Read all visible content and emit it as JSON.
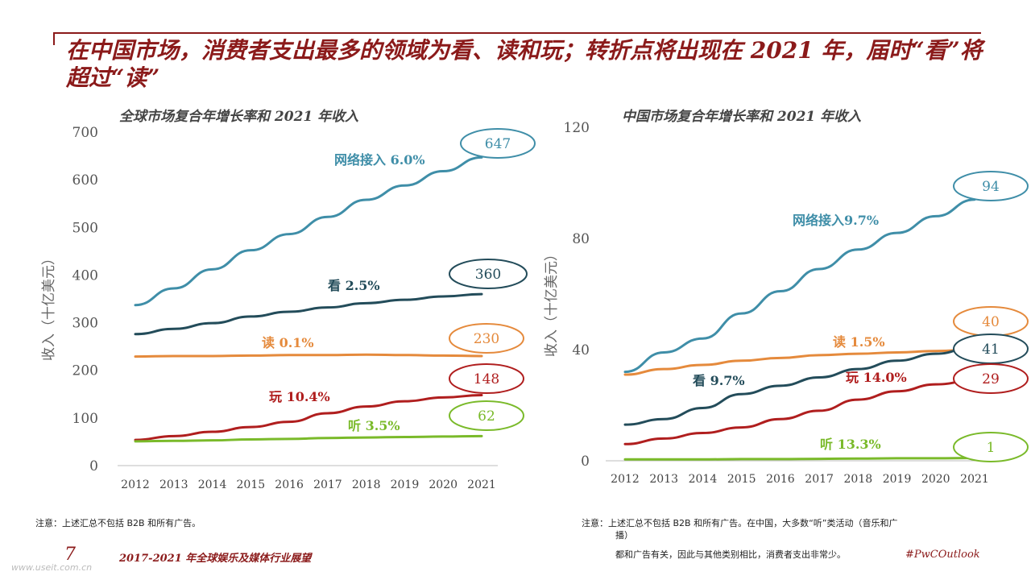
{
  "title": "在中国市场，消费者支出最多的领域为看、读和玩；转折点将出现在 2021 年，届时“看”将超过“读”",
  "charts_header": {
    "left_subtitle": "全球市场复合年增长率和 2021 年收入",
    "right_subtitle": "中国市场复合年增长率和 2021 年收入"
  },
  "chart_data": [
    {
      "type": "line",
      "title": "全球市场复合年增长率和 2021 年收入",
      "ylabel": "收入（十亿美元）",
      "ylim": [
        0,
        700
      ],
      "yticks": [
        "0",
        "100",
        "200",
        "300",
        "400",
        "500",
        "600",
        "700"
      ],
      "x": [
        "2012",
        "2013",
        "2014",
        "2015",
        "2016",
        "2017",
        "2018",
        "2019",
        "2020",
        "2021"
      ],
      "series": [
        {
          "name": "网络接入 6.0%",
          "color": "#3f8ea8",
          "values": [
            337,
            372,
            412,
            452,
            486,
            522,
            558,
            588,
            618,
            647
          ],
          "end_label": "647",
          "ellipse_color": "#3f8ea8"
        },
        {
          "name": "看 2.5%",
          "color": "#234c5a",
          "values": [
            276,
            287,
            299,
            313,
            323,
            332,
            341,
            348,
            355,
            360
          ],
          "end_label": "360",
          "ellipse_color": "#234c5a"
        },
        {
          "name": "读 0.1%",
          "color": "#e58a3c",
          "values": [
            229,
            230,
            230,
            231,
            232,
            232,
            233,
            232,
            231,
            230
          ],
          "end_label": "230",
          "ellipse_color": "#e58a3c"
        },
        {
          "name": "玩 10.4%",
          "color": "#b01e1e",
          "values": [
            54,
            62,
            71,
            81,
            92,
            110,
            124,
            135,
            143,
            148
          ],
          "end_label": "148",
          "ellipse_color": "#b01e1e"
        },
        {
          "name": "听 3.5%",
          "color": "#7aba2a",
          "values": [
            51,
            52,
            53,
            55,
            56,
            58,
            59,
            60,
            61,
            62
          ],
          "end_label": "62",
          "ellipse_color": "#7aba2a"
        }
      ]
    },
    {
      "type": "line",
      "title": "中国市场复合年增长率和 2021 年收入",
      "ylabel": "收入（十亿美元）",
      "ylim": [
        0,
        120
      ],
      "yticks": [
        "0",
        "40",
        "80",
        "120"
      ],
      "x": [
        "2012",
        "2013",
        "2014",
        "2015",
        "2016",
        "2017",
        "2018",
        "2019",
        "2020",
        "2021"
      ],
      "series": [
        {
          "name": "网络接入9.7%",
          "color": "#3f8ea8",
          "values": [
            32,
            39,
            44,
            53,
            61,
            69,
            76,
            82,
            88,
            94
          ],
          "end_label": "94",
          "ellipse_color": "#3f8ea8"
        },
        {
          "name": "读 1.5%",
          "color": "#e58a3c",
          "values": [
            31,
            33,
            34.5,
            36,
            37,
            38,
            38.5,
            39,
            39.5,
            40
          ],
          "end_label": "40",
          "ellipse_color": "#e58a3c"
        },
        {
          "name": "看 9.7%",
          "color": "#234c5a",
          "values": [
            13,
            15,
            19,
            24,
            27,
            30,
            33,
            36,
            38.5,
            41
          ],
          "end_label": "41",
          "ellipse_color": "#234c5a"
        },
        {
          "name": "玩 14.0%",
          "color": "#b01e1e",
          "values": [
            6,
            8,
            10,
            12,
            15,
            18,
            22,
            25,
            27.5,
            29
          ],
          "end_label": "29",
          "ellipse_color": "#b01e1e"
        },
        {
          "name": "听 13.3%",
          "color": "#7aba2a",
          "values": [
            0.5,
            0.5,
            0.5,
            0.6,
            0.6,
            0.7,
            0.8,
            0.9,
            0.9,
            1
          ],
          "end_label": "1",
          "ellipse_color": "#7aba2a"
        }
      ]
    }
  ],
  "notes": {
    "left": "注意：上述汇总不包括 B2B 和所有广告。",
    "right_line1": "注意：上述汇总不包括 B2B 和所有广告。在中国，大多数“听”类活动（音乐和广",
    "right_line2": "播）",
    "right_line3": "都和广告有关，因此与其他类别相比，消费者支出非常少。"
  },
  "footer": {
    "page_number": "7",
    "report_title": "2017-2021 年全球娱乐及媒体行业展望",
    "hashtag": "#PwCOutlook",
    "watermark": "www.useit.com.cn"
  }
}
